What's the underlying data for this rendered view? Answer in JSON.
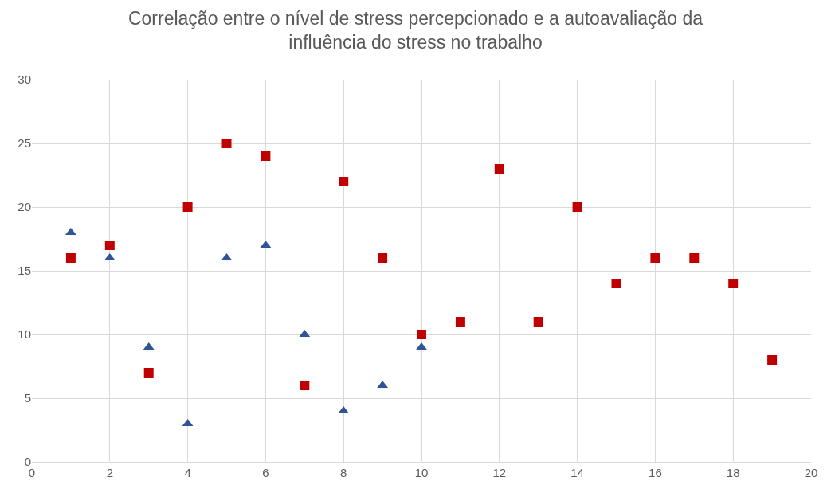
{
  "chart_data": {
    "type": "scatter",
    "title": "Correlação entre o nível de stress percepcionado e a autoavaliação da\ninfluência do stress no trabalho",
    "series": [
      {
        "color": "#2f5597",
        "marker": "triangle",
        "x": [
          1,
          2,
          3,
          4,
          5,
          6,
          7,
          8,
          9,
          10
        ],
        "values": [
          18,
          16,
          9,
          3,
          16,
          17,
          10,
          4,
          6,
          9
        ]
      },
      {
        "color": "#c00000",
        "marker": "square",
        "x": [
          1,
          2,
          3,
          4,
          5,
          6,
          7,
          8,
          9,
          10,
          11,
          12,
          13,
          14,
          15,
          16,
          17,
          18,
          19
        ],
        "values": [
          16,
          17,
          7,
          20,
          25,
          24,
          6,
          22,
          16,
          10,
          11,
          23,
          11,
          20,
          14,
          16,
          16,
          14,
          8
        ]
      }
    ],
    "xlim": [
      0,
      20
    ],
    "xticks": [
      0,
      2,
      4,
      6,
      8,
      10,
      12,
      14,
      16,
      18,
      20
    ],
    "ylim": [
      0,
      30
    ],
    "yticks": [
      0,
      5,
      10,
      15,
      20,
      25,
      30
    ],
    "grid": true
  }
}
